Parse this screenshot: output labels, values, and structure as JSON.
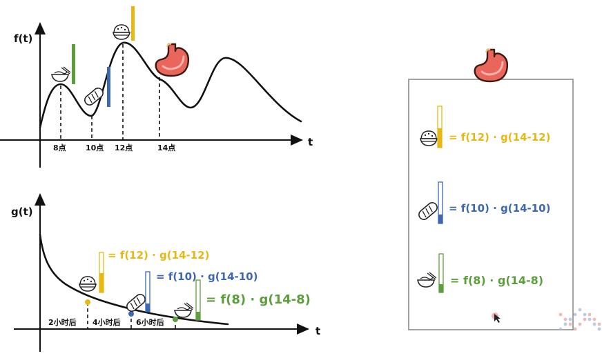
{
  "top_chart": {
    "ylabel": "f(t)",
    "xlabel": "t",
    "ticks": [
      "8点",
      "10点",
      "12点",
      "14点"
    ]
  },
  "bottom_chart": {
    "ylabel": "g(t)",
    "xlabel": "t",
    "ticks": [
      "2小时后",
      "4小时后",
      "6小时后"
    ],
    "equations": [
      "= f(12) · g(14-12)",
      "= f(10) · g(14-10)",
      "= f(8) · g(14-8)"
    ]
  },
  "panel": {
    "equations": [
      "= f(12) · g(14-12)",
      "= f(10) · g(14-10)",
      "= f(8) · g(14-8)"
    ]
  },
  "colors": {
    "yellow": "#e8b812",
    "blue": "#3d67b0",
    "green": "#5c9e3c",
    "stomach": "#e8665c"
  },
  "icons": [
    "rice-bowl-icon",
    "bread-icon",
    "noodle-bowl-icon",
    "stomach-icon",
    "cursor-icon",
    "watermark-logo"
  ]
}
